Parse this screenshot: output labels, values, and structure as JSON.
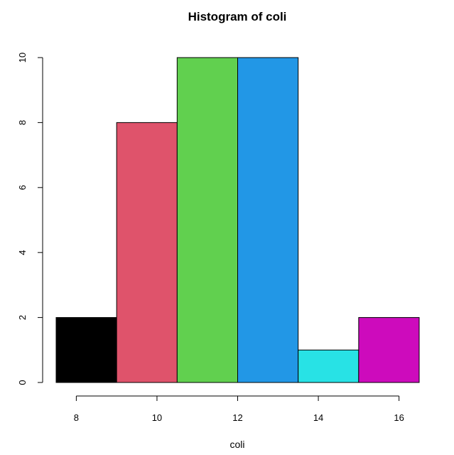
{
  "chart_data": {
    "type": "bar",
    "title": "Histogram of coli",
    "xlabel": "coli",
    "ylabel": "",
    "bins": [
      {
        "start": 7.5,
        "end": 9.0,
        "count": 2,
        "color": "#000000"
      },
      {
        "start": 9.0,
        "end": 10.5,
        "count": 8,
        "color": "#DF536B"
      },
      {
        "start": 10.5,
        "end": 12.0,
        "count": 10,
        "color": "#61D04F"
      },
      {
        "start": 12.0,
        "end": 13.5,
        "count": 10,
        "color": "#2297E6"
      },
      {
        "start": 13.5,
        "end": 15.0,
        "count": 1,
        "color": "#28E2E5"
      },
      {
        "start": 15.0,
        "end": 16.5,
        "count": 2,
        "color": "#CD0BBC"
      }
    ],
    "x_ticks": [
      8,
      10,
      12,
      14,
      16
    ],
    "y_ticks": [
      0,
      2,
      4,
      6,
      8,
      10
    ],
    "xlim": [
      7.5,
      16.5
    ],
    "ylim": [
      0,
      10
    ],
    "grid": false,
    "legend": "none"
  }
}
